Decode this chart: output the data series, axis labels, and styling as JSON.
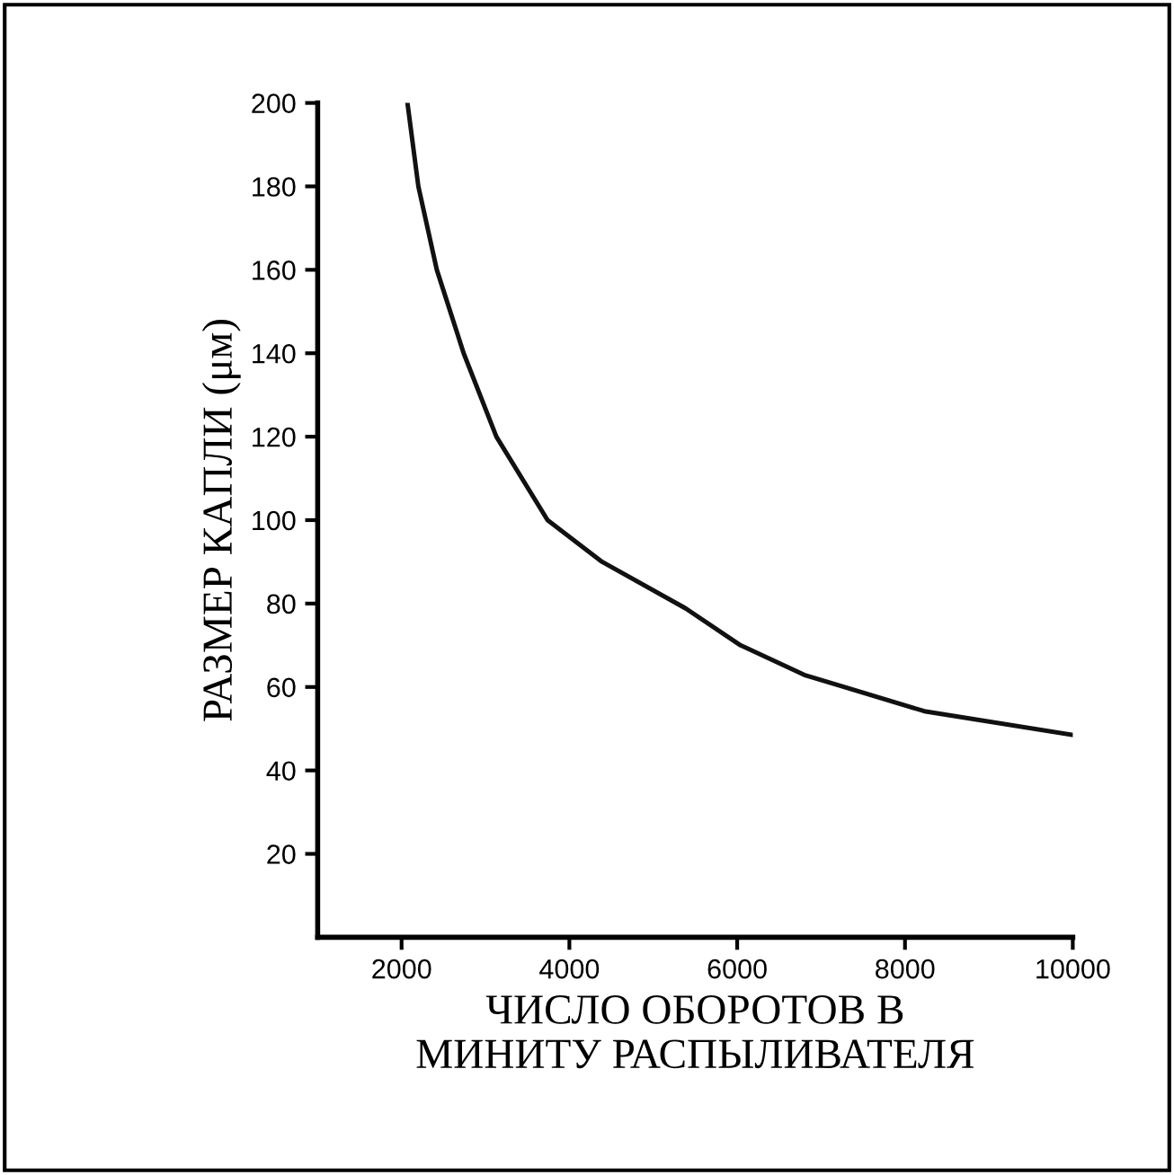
{
  "chart_data": {
    "type": "line",
    "xlabel": "ЧИСЛО ОБОРОТОВ В\nМИНИТУ РАСПЫЛИВАТЕЛЯ",
    "ylabel": "РАЗМЕР КАПЛИ (μм)",
    "x": [
      2070,
      2200,
      2420,
      2740,
      3130,
      3740,
      4390,
      5390,
      6040,
      6800,
      8230,
      10000
    ],
    "series": [
      {
        "color": "#111111",
        "values": [
          200,
          180,
          160,
          140,
          120,
          100,
          90,
          78.8,
          70,
          62.9,
          54.2,
          48.5
        ]
      }
    ],
    "xlim": [
      1000,
      10000
    ],
    "ylim": [
      0,
      200
    ],
    "xticks": [
      2000,
      4000,
      6000,
      8000,
      10000
    ],
    "yticks": [
      20,
      40,
      60,
      80,
      100,
      120,
      140,
      160,
      180,
      200
    ],
    "grid": false,
    "legend": false,
    "marker": "none",
    "line_style": "solid"
  }
}
